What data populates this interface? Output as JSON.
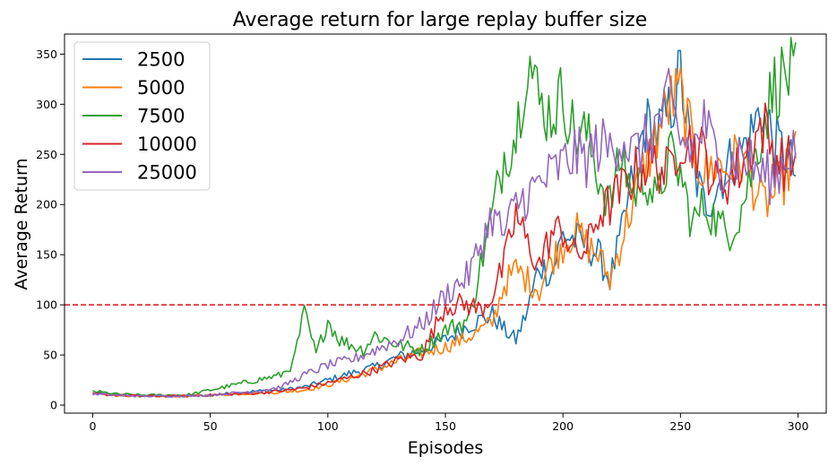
{
  "chart_data": {
    "type": "line",
    "title": "Average return for large replay buffer size",
    "xlabel": "Episodes",
    "ylabel": "Average Return",
    "xlim": [
      -12,
      312
    ],
    "ylim": [
      -8,
      370
    ],
    "xticks": [
      0,
      50,
      100,
      150,
      200,
      250,
      300
    ],
    "yticks": [
      0,
      50,
      100,
      150,
      200,
      250,
      300,
      350
    ],
    "legend_position": "upper-left",
    "grid": false,
    "threshold": {
      "y": 100,
      "color": "#d62728",
      "style": "dashed"
    },
    "series": [
      {
        "name": "2500",
        "color": "#1f77b4",
        "x": [
          0,
          10,
          20,
          30,
          40,
          50,
          60,
          70,
          80,
          90,
          100,
          110,
          120,
          130,
          140,
          150,
          160,
          170,
          175,
          180,
          185,
          190,
          195,
          200,
          205,
          210,
          215,
          220,
          225,
          230,
          235,
          240,
          245,
          250,
          255,
          260,
          265,
          270,
          275,
          280,
          285,
          290,
          295,
          299
        ],
        "y": [
          12,
          10,
          9,
          9,
          9,
          10,
          12,
          14,
          15,
          18,
          25,
          32,
          38,
          48,
          55,
          65,
          80,
          90,
          75,
          65,
          95,
          140,
          130,
          170,
          165,
          160,
          150,
          125,
          170,
          230,
          280,
          270,
          290,
          330,
          240,
          200,
          215,
          240,
          250,
          270,
          300,
          260,
          250,
          230
        ]
      },
      {
        "name": "5000",
        "color": "#ff7f0e",
        "x": [
          0,
          10,
          20,
          30,
          40,
          50,
          60,
          70,
          80,
          90,
          100,
          110,
          120,
          130,
          140,
          150,
          160,
          170,
          175,
          180,
          185,
          190,
          195,
          200,
          205,
          210,
          215,
          220,
          225,
          230,
          235,
          240,
          245,
          250,
          255,
          260,
          265,
          270,
          275,
          280,
          285,
          290,
          295,
          299
        ],
        "y": [
          11,
          10,
          9,
          9,
          9,
          10,
          11,
          12,
          13,
          15,
          20,
          27,
          35,
          44,
          52,
          58,
          68,
          82,
          120,
          135,
          125,
          115,
          145,
          160,
          175,
          160,
          150,
          125,
          165,
          205,
          240,
          270,
          300,
          310,
          260,
          230,
          240,
          235,
          250,
          225,
          200,
          210,
          230,
          250
        ]
      },
      {
        "name": "7500",
        "color": "#2ca02c",
        "x": [
          0,
          10,
          20,
          30,
          40,
          50,
          60,
          70,
          80,
          85,
          90,
          95,
          100,
          105,
          110,
          115,
          120,
          130,
          140,
          150,
          160,
          165,
          170,
          175,
          180,
          185,
          190,
          195,
          200,
          205,
          210,
          215,
          220,
          225,
          230,
          235,
          240,
          245,
          250,
          255,
          260,
          265,
          270,
          275,
          280,
          285,
          290,
          295,
          299
        ],
        "y": [
          14,
          11,
          10,
          10,
          10,
          15,
          20,
          25,
          30,
          40,
          92,
          50,
          85,
          65,
          60,
          55,
          70,
          60,
          55,
          75,
          85,
          140,
          190,
          250,
          270,
          352,
          300,
          290,
          310,
          270,
          270,
          230,
          200,
          250,
          210,
          230,
          200,
          250,
          230,
          180,
          200,
          185,
          170,
          190,
          230,
          280,
          320,
          330,
          325
        ]
      },
      {
        "name": "10000",
        "color": "#d62728",
        "x": [
          0,
          10,
          20,
          30,
          40,
          50,
          60,
          70,
          80,
          90,
          100,
          110,
          120,
          130,
          140,
          150,
          160,
          165,
          170,
          175,
          180,
          185,
          190,
          195,
          200,
          205,
          210,
          215,
          220,
          225,
          230,
          235,
          240,
          245,
          250,
          255,
          260,
          265,
          270,
          275,
          280,
          285,
          290,
          295,
          299
        ],
        "y": [
          11,
          10,
          9,
          9,
          9,
          10,
          11,
          12,
          14,
          17,
          22,
          28,
          35,
          45,
          50,
          100,
          100,
          95,
          110,
          140,
          190,
          160,
          140,
          170,
          175,
          150,
          155,
          190,
          200,
          215,
          230,
          240,
          240,
          230,
          270,
          260,
          250,
          220,
          225,
          235,
          260,
          280,
          250,
          240,
          245
        ]
      },
      {
        "name": "25000",
        "color": "#9467bd",
        "x": [
          0,
          10,
          20,
          30,
          40,
          50,
          60,
          70,
          80,
          90,
          100,
          110,
          120,
          130,
          140,
          150,
          160,
          165,
          170,
          175,
          180,
          185,
          190,
          195,
          200,
          205,
          210,
          215,
          220,
          225,
          230,
          235,
          240,
          245,
          250,
          255,
          260,
          265,
          270,
          275,
          280,
          285,
          290,
          295,
          299
        ],
        "y": [
          11,
          10,
          9,
          9,
          9,
          10,
          12,
          14,
          18,
          30,
          40,
          45,
          55,
          65,
          80,
          110,
          130,
          160,
          190,
          170,
          200,
          210,
          220,
          230,
          240,
          250,
          245,
          260,
          255,
          270,
          250,
          260,
          280,
          300,
          265,
          255,
          280,
          250,
          235,
          250,
          240,
          230,
          225,
          250,
          260
        ]
      }
    ]
  }
}
